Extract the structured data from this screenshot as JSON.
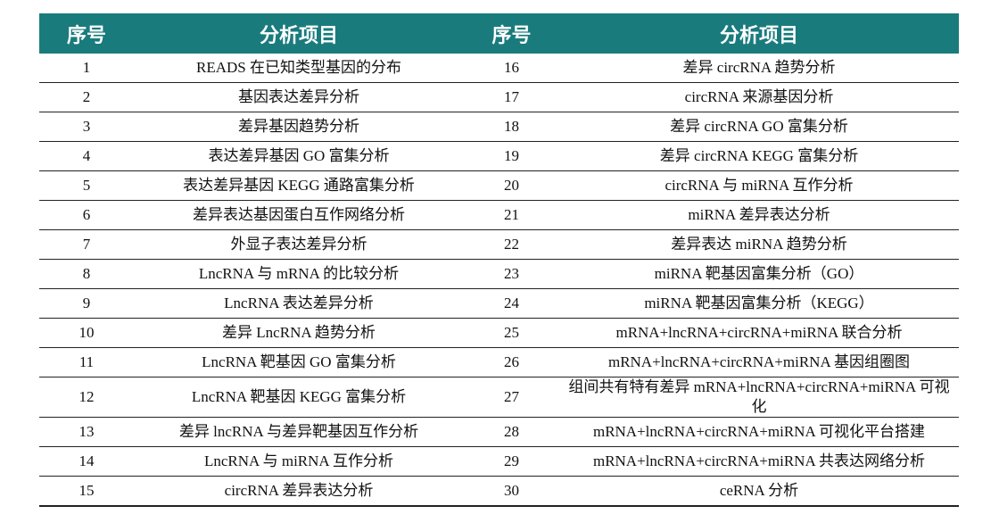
{
  "table": {
    "header": [
      "序号",
      "分析项目",
      "序号",
      "分析项目"
    ],
    "rows": [
      [
        1,
        "READS 在已知类型基因的分布",
        16,
        "差异 circRNA 趋势分析"
      ],
      [
        2,
        "基因表达差异分析",
        17,
        "circRNA 来源基因分析"
      ],
      [
        3,
        "差异基因趋势分析",
        18,
        "差异 circRNA GO 富集分析"
      ],
      [
        4,
        "表达差异基因 GO 富集分析",
        19,
        "差异 circRNA KEGG 富集分析"
      ],
      [
        5,
        "表达差异基因 KEGG 通路富集分析",
        20,
        "circRNA 与 miRNA 互作分析"
      ],
      [
        6,
        "差异表达基因蛋白互作网络分析",
        21,
        "miRNA 差异表达分析"
      ],
      [
        7,
        "外显子表达差异分析",
        22,
        "差异表达 miRNA 趋势分析"
      ],
      [
        8,
        "LncRNA 与 mRNA 的比较分析",
        23,
        "miRNA 靶基因富集分析（GO）"
      ],
      [
        9,
        "LncRNA 表达差异分析",
        24,
        "miRNA 靶基因富集分析（KEGG）"
      ],
      [
        10,
        "差异 LncRNA 趋势分析",
        25,
        "mRNA+lncRNA+circRNA+miRNA 联合分析"
      ],
      [
        11,
        "LncRNA 靶基因 GO 富集分析",
        26,
        "mRNA+lncRNA+circRNA+miRNA 基因组圈图"
      ],
      [
        12,
        "LncRNA 靶基因 KEGG 富集分析",
        27,
        "组间共有特有差异 mRNA+lncRNA+circRNA+miRNA 可视化"
      ],
      [
        13,
        "差异 lncRNA 与差异靶基因互作分析",
        28,
        "mRNA+lncRNA+circRNA+miRNA 可视化平台搭建"
      ],
      [
        14,
        "LncRNA 与 miRNA 互作分析",
        29,
        "mRNA+lncRNA+circRNA+miRNA 共表达网络分析"
      ],
      [
        15,
        "circRNA 差异表达分析",
        30,
        "ceRNA 分析"
      ]
    ]
  }
}
